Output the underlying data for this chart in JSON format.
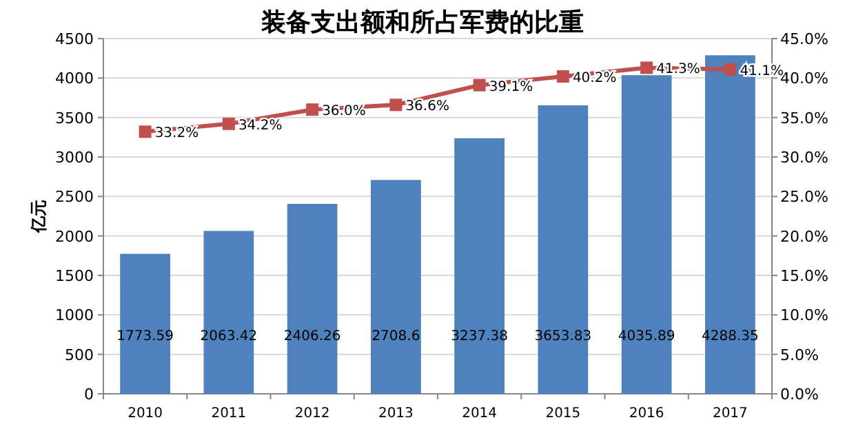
{
  "chart_data": {
    "type": "bar",
    "title": "装备支出额和所占军费的比重",
    "ylabel": "亿元",
    "categories": [
      "2010",
      "2011",
      "2012",
      "2013",
      "2014",
      "2015",
      "2016",
      "2017"
    ],
    "series": [
      {
        "color": "#4f81bd",
        "values": [
          1773.59,
          2063.42,
          2406.26,
          2708.6,
          3237.38,
          3653.83,
          4035.89,
          4288.35
        ],
        "value_labels": [
          "1773.59",
          "2063.42",
          "2406.26",
          "2708.6",
          "3237.38",
          "3653.83",
          "4035.89",
          "4288.35"
        ]
      },
      {
        "type": "line",
        "axis": "y2",
        "color": "#c0504d",
        "marker": "square",
        "values": [
          33.2,
          34.2,
          36.0,
          36.6,
          39.1,
          40.2,
          41.3,
          41.1
        ],
        "value_labels": [
          "33.2%",
          "34.2%",
          "36.0%",
          "36.6%",
          "39.1%",
          "40.2%",
          "41.3%",
          "41.1%"
        ]
      }
    ],
    "ylim": [
      0,
      4500
    ],
    "yticks": [
      0,
      500,
      1000,
      1500,
      2000,
      2500,
      3000,
      3500,
      4000,
      4500
    ],
    "y2lim": [
      0,
      45
    ],
    "y2ticks": [
      {
        "value": 0,
        "label": "0.0%"
      },
      {
        "value": 5,
        "label": "5.0%"
      },
      {
        "value": 10,
        "label": "10.0%"
      },
      {
        "value": 15,
        "label": "15.0%"
      },
      {
        "value": 20,
        "label": "20.0%"
      },
      {
        "value": 25,
        "label": "25.0%"
      },
      {
        "value": 30,
        "label": "30.0%"
      },
      {
        "value": 35,
        "label": "35.0%"
      },
      {
        "value": 40,
        "label": "40.0%"
      },
      {
        "value": 45,
        "label": "45.0%"
      }
    ],
    "grid": "y"
  }
}
